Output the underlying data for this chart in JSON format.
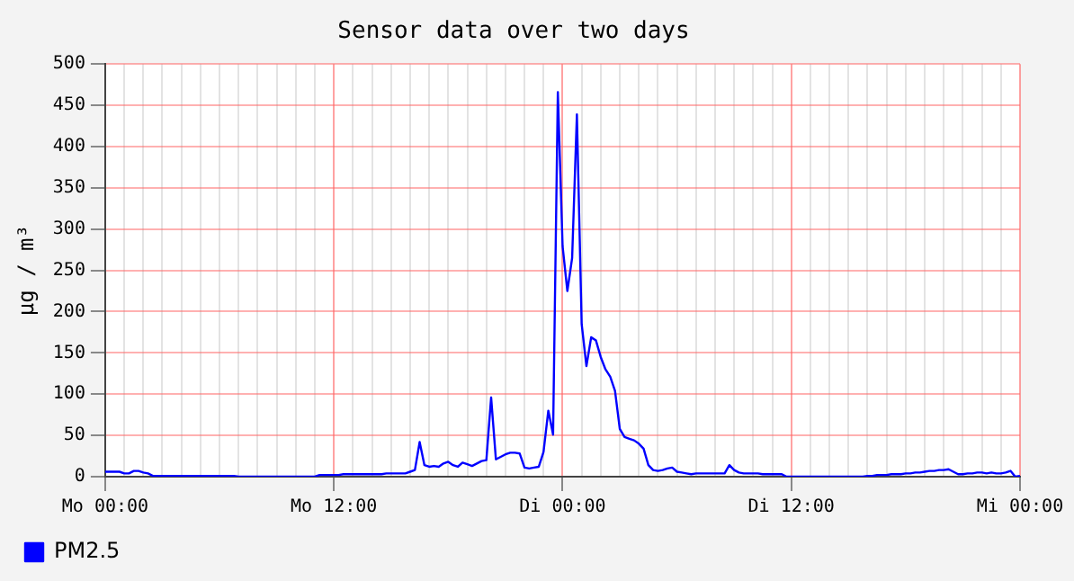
{
  "chart_data": {
    "type": "line",
    "title": "Sensor data over two days",
    "ylabel": "µg / m³",
    "categories": [
      "Mo 00:00",
      null,
      null,
      null,
      null,
      null,
      null,
      null,
      null,
      null,
      null,
      null,
      null,
      null,
      null,
      null,
      null,
      null,
      null,
      null,
      null,
      null,
      null,
      null,
      null,
      null,
      null,
      null,
      null,
      null,
      null,
      null,
      null,
      null,
      null,
      null,
      null,
      null,
      null,
      null,
      null,
      null,
      null,
      null,
      null,
      null,
      null,
      null,
      "Mo 12:00",
      null,
      null,
      null,
      null,
      null,
      null,
      null,
      null,
      null,
      null,
      null,
      null,
      null,
      null,
      null,
      null,
      null,
      null,
      null,
      null,
      null,
      null,
      null,
      null,
      null,
      null,
      null,
      null,
      null,
      null,
      null,
      null,
      null,
      null,
      null,
      null,
      null,
      null,
      null,
      null,
      null,
      null,
      null,
      null,
      null,
      null,
      null,
      "Di 00:00",
      null,
      null,
      null,
      null,
      null,
      null,
      null,
      null,
      null,
      null,
      null,
      null,
      null,
      null,
      null,
      null,
      null,
      null,
      null,
      null,
      null,
      null,
      null,
      null,
      null,
      null,
      null,
      null,
      null,
      null,
      null,
      null,
      null,
      null,
      null,
      null,
      null,
      null,
      null,
      null,
      null,
      null,
      null,
      null,
      null,
      null,
      null,
      "Di 12:00",
      null,
      null,
      null,
      null,
      null,
      null,
      null,
      null,
      null,
      null,
      null,
      null,
      null,
      null,
      null,
      null,
      null,
      null,
      null,
      null,
      null,
      null,
      null,
      null,
      null,
      null,
      null,
      null,
      null,
      null,
      null,
      null,
      null,
      null,
      null,
      null,
      null,
      null,
      null,
      null,
      null,
      null,
      null,
      null,
      null,
      null,
      null,
      "Mi 00:00"
    ],
    "ylim": [
      0,
      500
    ],
    "yticks": [
      0,
      50,
      100,
      150,
      200,
      250,
      300,
      350,
      400,
      450,
      500
    ],
    "grid": true,
    "legend": "bottom left",
    "marker": "none",
    "line_style": "solid",
    "series": [
      {
        "name": "PM2.5",
        "color": "#0000ff",
        "values": [
          6,
          6,
          6,
          6,
          4,
          4,
          7,
          7,
          5,
          4,
          1,
          1,
          1,
          1,
          1,
          1,
          1,
          1,
          1,
          1,
          1,
          1,
          1,
          1,
          1,
          1,
          1,
          1,
          0,
          0,
          0,
          0,
          0,
          0,
          0,
          0,
          0,
          0,
          0,
          0,
          0,
          0,
          0,
          0,
          0,
          2,
          2,
          2,
          2,
          2,
          3,
          3,
          3,
          3,
          3,
          3,
          3,
          3,
          3,
          4,
          4,
          4,
          4,
          4,
          6,
          8,
          42,
          14,
          12,
          13,
          12,
          16,
          18,
          14,
          12,
          17,
          15,
          13,
          16,
          19,
          20,
          96,
          21,
          24,
          27,
          29,
          29,
          28,
          11,
          10,
          11,
          12,
          30,
          80,
          51,
          466,
          279,
          225,
          265,
          439,
          185,
          134,
          169,
          165,
          145,
          130,
          121,
          104,
          58,
          48,
          46,
          44,
          40,
          34,
          14,
          8,
          7,
          8,
          10,
          11,
          6,
          5,
          4,
          3,
          4,
          4,
          4,
          4,
          4,
          4,
          4,
          14,
          8,
          5,
          4,
          4,
          4,
          4,
          3,
          3,
          3,
          3,
          3,
          0,
          0,
          0,
          0,
          0,
          0,
          0,
          0,
          0,
          0,
          0,
          0,
          0,
          0,
          0,
          0,
          0,
          1,
          1,
          2,
          2,
          2,
          3,
          3,
          3,
          4,
          4,
          5,
          5,
          6,
          7,
          7,
          8,
          8,
          9,
          6,
          3,
          3,
          4,
          4,
          5,
          5,
          4,
          5,
          4,
          4,
          5,
          7,
          0,
          1
        ]
      }
    ]
  }
}
